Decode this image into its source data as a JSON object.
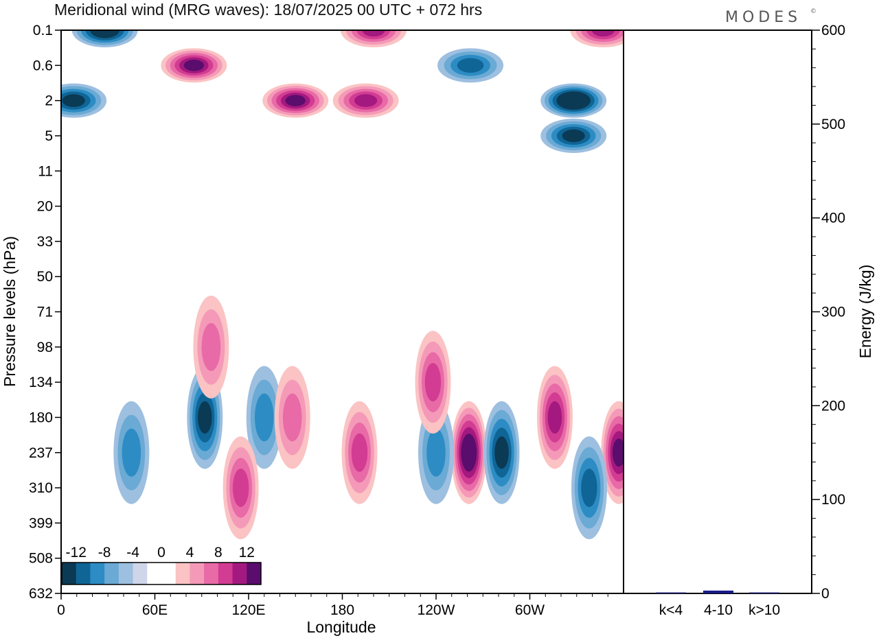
{
  "header": {
    "title": "Meridional wind (MRG waves):  18/07/2025  00 UTC  + 072 hrs",
    "brand": "MODES",
    "brand_mark": "©"
  },
  "chart_data": [
    {
      "type": "heatmap",
      "variable": "Meridional wind",
      "xlabel": "Longitude",
      "ylabel": "Pressure levels (hPa)",
      "x_ticks": [
        "0",
        "60E",
        "120E",
        "180",
        "120W",
        "60W"
      ],
      "x_range_deg": [
        0,
        360
      ],
      "y_ticks": [
        "0.1",
        "0.6",
        "2",
        "5",
        "11",
        "20",
        "33",
        "50",
        "71",
        "98",
        "134",
        "180",
        "237",
        "310",
        "399",
        "508",
        "632"
      ],
      "y_scale": "ordinal (top to bottom)",
      "colorbar": {
        "labels": [
          "-12",
          "-8",
          "-4",
          "0",
          "4",
          "8",
          "12"
        ],
        "levels": [
          -14,
          -12,
          -10,
          -8,
          -6,
          -4,
          -2,
          2,
          4,
          6,
          8,
          10,
          12,
          14
        ],
        "colors": [
          "#0b3a55",
          "#0f6596",
          "#2d8cc4",
          "#6aaad4",
          "#9dbfe0",
          "#cfd6ea",
          "#ffffff",
          "#ffffff",
          "#fbc3c4",
          "#f49ab8",
          "#e86aa6",
          "#d23c92",
          "#a4197f",
          "#5a0d6d"
        ]
      },
      "features": [
        {
          "lon": 28,
          "level": "0.1",
          "value": -12
        },
        {
          "lon": 200,
          "level": "0.1",
          "value": 10
        },
        {
          "lon": 347,
          "level": "0.1",
          "value": 10
        },
        {
          "lon": 85,
          "level": "0.6",
          "value": 11
        },
        {
          "lon": 150,
          "level": "2",
          "value": 12
        },
        {
          "lon": 195,
          "level": "2",
          "value": 10
        },
        {
          "lon": 8,
          "level": "2",
          "value": -10
        },
        {
          "lon": 328,
          "level": "2",
          "value": -14
        },
        {
          "lon": 262,
          "level": "0.6",
          "value": -7
        },
        {
          "lon": 328,
          "level": "5",
          "value": -9
        },
        {
          "lon": 92,
          "level": "180",
          "value": -9
        },
        {
          "lon": 45,
          "level": "237",
          "value": -6
        },
        {
          "lon": 130,
          "level": "180",
          "value": -6
        },
        {
          "lon": 261,
          "level": "237",
          "value": 14
        },
        {
          "lon": 240,
          "level": "237",
          "value": -6
        },
        {
          "lon": 282,
          "level": "237",
          "value": -9
        },
        {
          "lon": 316,
          "level": "180",
          "value": 10
        },
        {
          "lon": 357,
          "level": "237",
          "value": 11
        },
        {
          "lon": 115,
          "level": "310",
          "value": 8
        },
        {
          "lon": 96,
          "level": "98",
          "value": 6
        },
        {
          "lon": 191,
          "level": "237",
          "value": 7
        },
        {
          "lon": 148,
          "level": "180",
          "value": 6
        },
        {
          "lon": 238,
          "level": "134",
          "value": 7
        },
        {
          "lon": 338,
          "level": "310",
          "value": -7
        }
      ]
    },
    {
      "type": "bar",
      "categories": [
        "k<4",
        "4-10",
        "k>10"
      ],
      "values": [
        1,
        3,
        0.5
      ],
      "ylabel": "Energy (J/kg)",
      "y_ticks": [
        "0",
        "100",
        "200",
        "300",
        "400",
        "500",
        "600"
      ],
      "ylim": [
        0,
        600
      ],
      "colors": [
        "#2a2a7a",
        "#1a1a88",
        "#2a2a7a"
      ]
    }
  ]
}
